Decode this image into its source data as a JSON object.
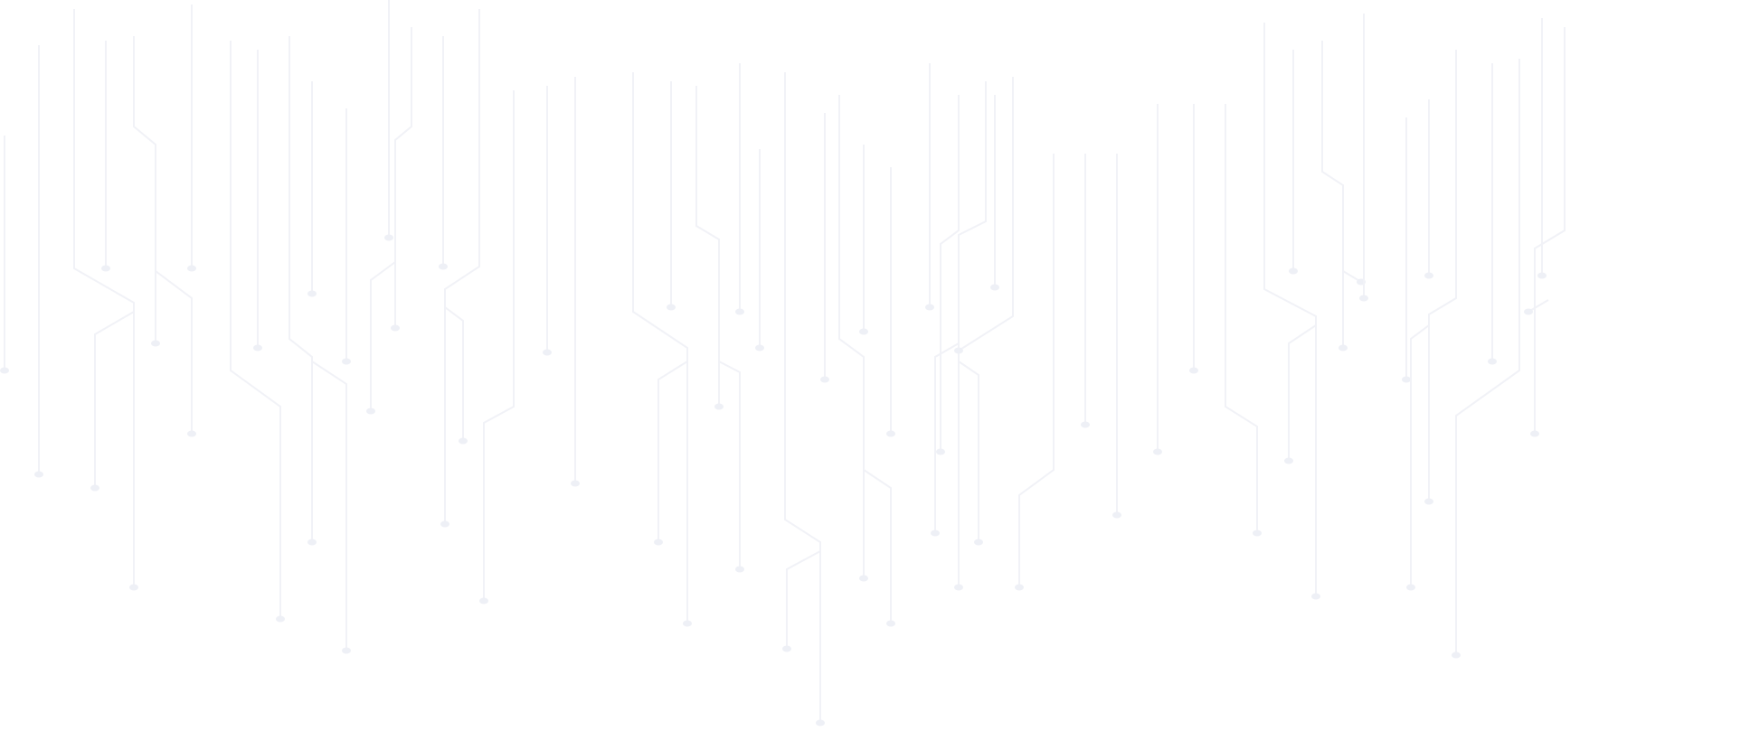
{
  "background": {
    "pattern": "circuit-traces",
    "background_color": "#ffffff",
    "line_color": "#f1f2f7",
    "node_color": "#eef0f6"
  }
}
